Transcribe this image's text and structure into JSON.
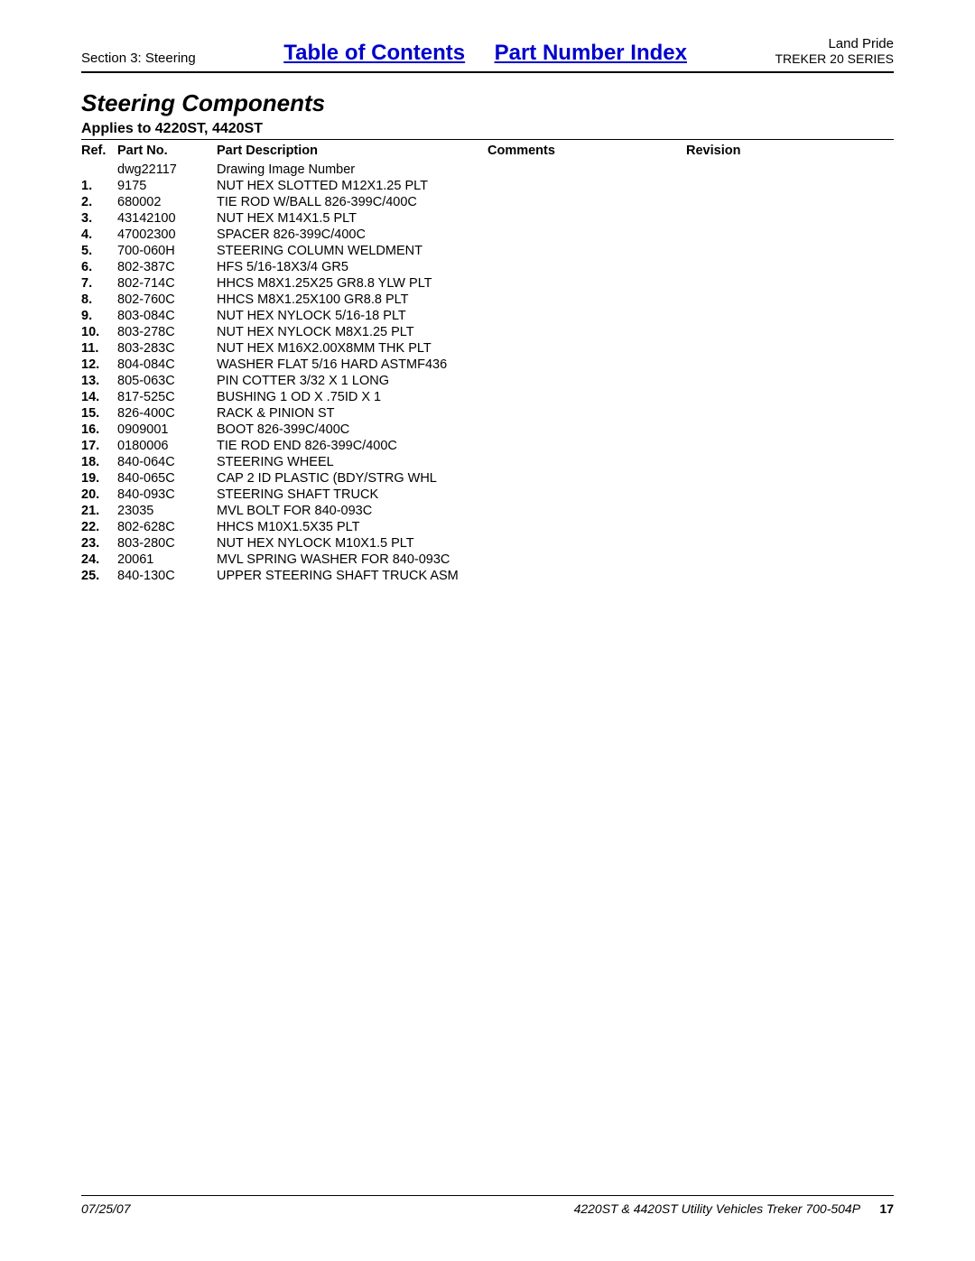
{
  "header": {
    "section_label": "Section 3: Steering",
    "toc_link": "Table of Contents",
    "pni_link": "Part Number Index",
    "brand": "Land Pride",
    "series": "TREKER 20 SERIES"
  },
  "section_title": "Steering Components",
  "applies_to": "Applies to 4220ST, 4420ST",
  "columns": {
    "ref": "Ref.",
    "part_no": "Part No.",
    "part_desc": "Part Description",
    "comments": "Comments",
    "revision": "Revision"
  },
  "rows": [
    {
      "ref": "",
      "part_no": "dwg22117",
      "desc": "Drawing Image Number"
    },
    {
      "ref": "1.",
      "part_no": "9175",
      "desc": "NUT HEX SLOTTED M12X1.25 PLT"
    },
    {
      "ref": "2.",
      "part_no": "680002",
      "desc": "TIE ROD W/BALL 826-399C/400C"
    },
    {
      "ref": "3.",
      "part_no": "43142100",
      "desc": "NUT HEX M14X1.5 PLT"
    },
    {
      "ref": "4.",
      "part_no": "47002300",
      "desc": "SPACER 826-399C/400C"
    },
    {
      "ref": "5.",
      "part_no": "700-060H",
      "desc": "STEERING COLUMN WELDMENT"
    },
    {
      "ref": "6.",
      "part_no": "802-387C",
      "desc": "HFS 5/16-18X3/4 GR5"
    },
    {
      "ref": "7.",
      "part_no": "802-714C",
      "desc": "HHCS M8X1.25X25 GR8.8 YLW PLT"
    },
    {
      "ref": "8.",
      "part_no": "802-760C",
      "desc": "HHCS M8X1.25X100 GR8.8 PLT"
    },
    {
      "ref": "9.",
      "part_no": "803-084C",
      "desc": "NUT HEX NYLOCK 5/16-18 PLT"
    },
    {
      "ref": "10.",
      "part_no": "803-278C",
      "desc": "NUT HEX NYLOCK M8X1.25 PLT"
    },
    {
      "ref": "11.",
      "part_no": "803-283C",
      "desc": "NUT HEX M16X2.00X8MM THK PLT"
    },
    {
      "ref": "12.",
      "part_no": "804-084C",
      "desc": "WASHER FLAT 5/16 HARD ASTMF436"
    },
    {
      "ref": "13.",
      "part_no": "805-063C",
      "desc": "PIN COTTER 3/32 X 1 LONG"
    },
    {
      "ref": "14.",
      "part_no": "817-525C",
      "desc": "BUSHING 1 OD X .75ID X 1"
    },
    {
      "ref": "15.",
      "part_no": "826-400C",
      "desc": "RACK & PINION ST"
    },
    {
      "ref": "16.",
      "part_no": "0909001",
      "desc": "BOOT 826-399C/400C"
    },
    {
      "ref": "17.",
      "part_no": "0180006",
      "desc": "TIE ROD END 826-399C/400C"
    },
    {
      "ref": "18.",
      "part_no": "840-064C",
      "desc": "STEERING WHEEL"
    },
    {
      "ref": "19.",
      "part_no": "840-065C",
      "desc": "CAP 2 ID PLASTIC (BDY/STRG WHL"
    },
    {
      "ref": "20.",
      "part_no": "840-093C",
      "desc": "STEERING SHAFT TRUCK"
    },
    {
      "ref": "21.",
      "part_no": "23035",
      "desc": "MVL BOLT FOR 840-093C"
    },
    {
      "ref": "22.",
      "part_no": "802-628C",
      "desc": "HHCS M10X1.5X35 PLT"
    },
    {
      "ref": "23.",
      "part_no": "803-280C",
      "desc": "NUT HEX NYLOCK M10X1.5 PLT"
    },
    {
      "ref": "24.",
      "part_no": "20061",
      "desc": "MVL SPRING WASHER FOR 840-093C"
    },
    {
      "ref": "25.",
      "part_no": "840-130C",
      "desc": "UPPER STEERING SHAFT TRUCK ASM"
    }
  ],
  "footer": {
    "date": "07/25/07",
    "doc_title": "4220ST & 4420ST Utility Vehicles Treker 700-504P",
    "page_number": "17"
  }
}
